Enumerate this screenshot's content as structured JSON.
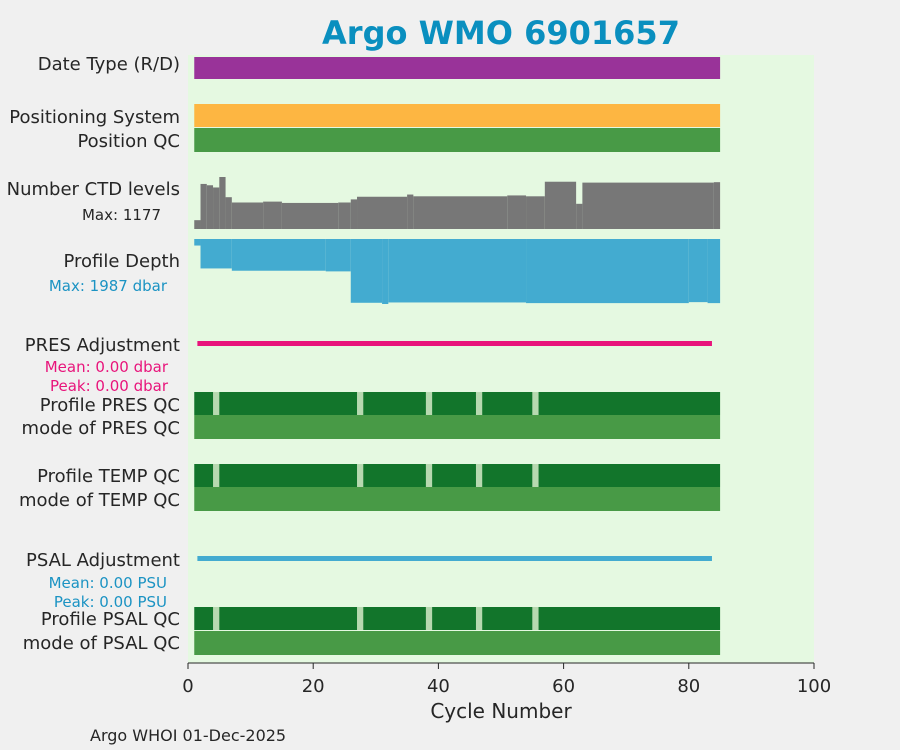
{
  "chart_data": {
    "type": "bar",
    "title": "Argo WMO 6901657",
    "xlabel": "Cycle Number",
    "xlim": [
      0,
      100
    ],
    "x_ticks": [
      0,
      20,
      40,
      60,
      80,
      100
    ],
    "x_tick_labels": [
      "0",
      "20",
      "40",
      "60",
      "80",
      "100"
    ],
    "grid": false,
    "first_cycle": 1,
    "last_cycle": 84,
    "colors": {
      "background": "#f0f0f0",
      "plot_area": "#e5f9e1",
      "title": "#0a8fbf",
      "date_type": "#993399",
      "positioning": "#fdb642",
      "qc_good": "#489a46",
      "qc_dark": "#12752b",
      "qc_gap": "#b7d9b0",
      "ctd": "#777777",
      "depth": "#43abd0",
      "depth_text": "#1b93c3",
      "pres_adj": "#e8147b",
      "psal_adj": "#43abd0"
    },
    "rows": {
      "date_type": {
        "label": "Date Type (R/D)"
      },
      "positioning": {
        "label": "Positioning System"
      },
      "position_qc": {
        "label": "Position QC"
      },
      "ctd_levels": {
        "label": "Number CTD levels",
        "max_text": "Max: 1177",
        "max": 1177
      },
      "profile_depth": {
        "label": "Profile Depth",
        "max_text": "Max: 1987 dbar",
        "max": 1987
      },
      "pres_adjustment": {
        "label": "PRES Adjustment",
        "mean_text": "Mean: 0.00 dbar",
        "peak_text": "Peak: 0.00 dbar"
      },
      "profile_pres_qc": {
        "label": "Profile PRES QC"
      },
      "mode_pres_qc": {
        "label": "mode of PRES QC"
      },
      "profile_temp_qc": {
        "label": "Profile TEMP QC"
      },
      "mode_temp_qc": {
        "label": "mode of TEMP QC"
      },
      "psal_adjustment": {
        "label": "PSAL Adjustment",
        "mean_text": "Mean: 0.00 PSU",
        "peak_text": "Peak: 0.00 PSU"
      },
      "profile_psal_qc": {
        "label": "Profile PSAL QC"
      },
      "mode_psal_qc": {
        "label": "mode of PSAL QC"
      }
    },
    "qc_gap_cycles": [
      4,
      27,
      38,
      46,
      55
    ],
    "ctd_levels_steps": [
      {
        "x0": 1,
        "x1": 2,
        "v": 200
      },
      {
        "x0": 2,
        "x1": 3,
        "v": 1020
      },
      {
        "x0": 3,
        "x1": 4,
        "v": 990
      },
      {
        "x0": 4,
        "x1": 5,
        "v": 940
      },
      {
        "x0": 5,
        "x1": 6,
        "v": 1177
      },
      {
        "x0": 6,
        "x1": 7,
        "v": 720
      },
      {
        "x0": 7,
        "x1": 12,
        "v": 600
      },
      {
        "x0": 12,
        "x1": 15,
        "v": 620
      },
      {
        "x0": 15,
        "x1": 24,
        "v": 590
      },
      {
        "x0": 24,
        "x1": 26,
        "v": 600
      },
      {
        "x0": 26,
        "x1": 27,
        "v": 670
      },
      {
        "x0": 27,
        "x1": 35,
        "v": 730
      },
      {
        "x0": 35,
        "x1": 36,
        "v": 780
      },
      {
        "x0": 36,
        "x1": 51,
        "v": 740
      },
      {
        "x0": 51,
        "x1": 54,
        "v": 760
      },
      {
        "x0": 54,
        "x1": 57,
        "v": 740
      },
      {
        "x0": 57,
        "x1": 62,
        "v": 1070
      },
      {
        "x0": 62,
        "x1": 63,
        "v": 570
      },
      {
        "x0": 63,
        "x1": 84,
        "v": 1050
      },
      {
        "x0": 84,
        "x1": 85,
        "v": 1060
      }
    ],
    "profile_depth_steps": [
      {
        "x0": 1,
        "x1": 2,
        "v": 200
      },
      {
        "x0": 2,
        "x1": 7,
        "v": 900
      },
      {
        "x0": 7,
        "x1": 22,
        "v": 970
      },
      {
        "x0": 22,
        "x1": 26,
        "v": 990
      },
      {
        "x0": 26,
        "x1": 31,
        "v": 1950
      },
      {
        "x0": 31,
        "x1": 32,
        "v": 1987
      },
      {
        "x0": 32,
        "x1": 54,
        "v": 1940
      },
      {
        "x0": 54,
        "x1": 80,
        "v": 1960
      },
      {
        "x0": 80,
        "x1": 83,
        "v": 1930
      },
      {
        "x0": 83,
        "x1": 85,
        "v": 1960
      }
    ],
    "footer": "Argo WHOI 01-Dec-2025"
  }
}
